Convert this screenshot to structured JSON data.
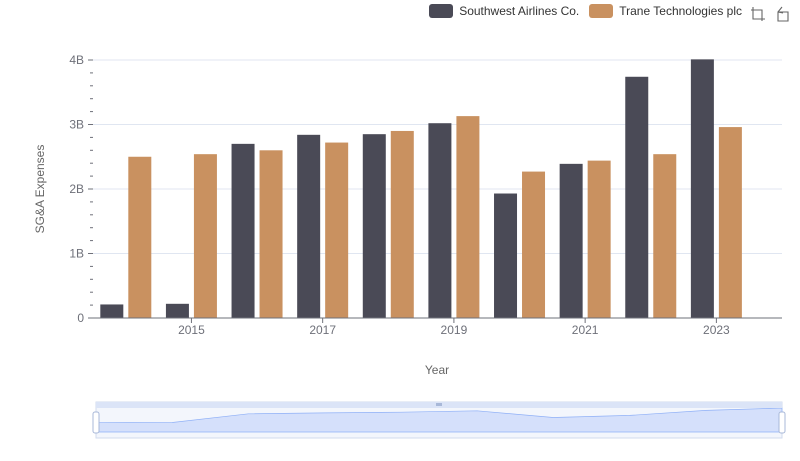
{
  "chart_data": {
    "type": "bar",
    "xlabel": "Year",
    "ylabel": "SG&A Expenses",
    "categories": [
      "2014",
      "2015",
      "2016",
      "2017",
      "2018",
      "2019",
      "2020",
      "2021",
      "2022",
      "2023",
      "2024"
    ],
    "x_tick_labels": [
      "2015",
      "2017",
      "2019",
      "2021",
      "2023"
    ],
    "y_tick_labels": [
      "0",
      "1B",
      "2B",
      "3B",
      "4B"
    ],
    "ylim": [
      0,
      4000000000
    ],
    "series": [
      {
        "name": "Southwest Airlines Co.",
        "color": "#4a4a56",
        "values": [
          210000000,
          220000000,
          2700000000,
          2840000000,
          2850000000,
          3020000000,
          1930000000,
          2390000000,
          3740000000,
          4010000000,
          null
        ]
      },
      {
        "name": "Trane Technologies plc",
        "color": "#c99160",
        "values": [
          2500000000,
          2540000000,
          2600000000,
          2720000000,
          2900000000,
          3130000000,
          2270000000,
          2440000000,
          2540000000,
          2960000000,
          null
        ]
      }
    ],
    "legend_position": "top-right",
    "grid": true
  },
  "legend": [
    {
      "label": "Southwest Airlines Co.",
      "color": "#4a4a56"
    },
    {
      "label": "Trane Technologies plc",
      "color": "#c99160"
    }
  ],
  "toolbox": {
    "icons": [
      "zoom-icon",
      "restore-icon"
    ]
  }
}
